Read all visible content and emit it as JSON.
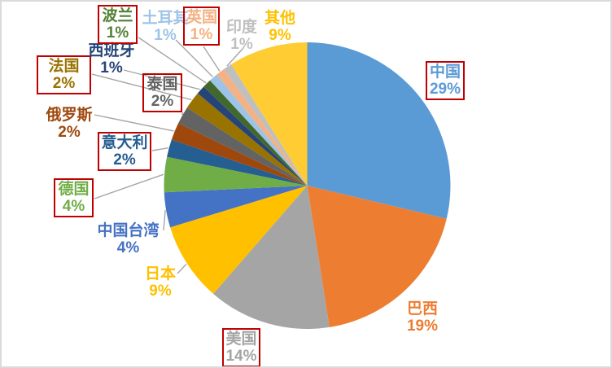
{
  "chart_data": {
    "type": "pie",
    "title": "",
    "unit": "%",
    "legend_position": "none",
    "background": "#FFFFFF",
    "frame_border_color": "#DBDBDB",
    "leader_line_color": "#A6A6A6",
    "highlight_box_color": "#C00000",
    "slices": [
      {
        "label": "中国",
        "value": 29,
        "pct": "29%",
        "color": "#5B9BD5",
        "label_color": "#5B9BD5",
        "boxed": true,
        "callout_line": false
      },
      {
        "label": "巴西",
        "value": 19,
        "pct": "19%",
        "color": "#ED7D31",
        "label_color": "#ED7D31",
        "boxed": false,
        "callout_line": false
      },
      {
        "label": "美国",
        "value": 14,
        "pct": "14%",
        "color": "#A5A5A5",
        "label_color": "#A5A5A5",
        "boxed": true,
        "callout_line": false
      },
      {
        "label": "日本",
        "value": 9,
        "pct": "9%",
        "color": "#FFC000",
        "label_color": "#FFC000",
        "boxed": false,
        "callout_line": true
      },
      {
        "label": "中国台湾",
        "value": 4,
        "pct": "4%",
        "color": "#4472C4",
        "label_color": "#4472C4",
        "boxed": false,
        "callout_line": true
      },
      {
        "label": "德国",
        "value": 4,
        "pct": "4%",
        "color": "#70AD47",
        "label_color": "#70AD47",
        "boxed": true,
        "callout_line": true
      },
      {
        "label": "意大利",
        "value": 2,
        "pct": "2%",
        "color": "#255E91",
        "label_color": "#255E91",
        "boxed": true,
        "callout_line": true
      },
      {
        "label": "俄罗斯",
        "value": 2,
        "pct": "2%",
        "color": "#9E480E",
        "label_color": "#9E480E",
        "boxed": false,
        "callout_line": true
      },
      {
        "label": "泰国",
        "value": 2,
        "pct": "2%",
        "color": "#636363",
        "label_color": "#636363",
        "boxed": true,
        "callout_line": true
      },
      {
        "label": "法国",
        "value": 2,
        "pct": "2%",
        "color": "#997300",
        "label_color": "#997300",
        "boxed": true,
        "callout_line": true
      },
      {
        "label": "西班牙",
        "value": 1,
        "pct": "1%",
        "color": "#264478",
        "label_color": "#264478",
        "boxed": false,
        "callout_line": true
      },
      {
        "label": "波兰",
        "value": 1,
        "pct": "1%",
        "color": "#43682B",
        "label_color": "#538135",
        "boxed": true,
        "callout_line": true
      },
      {
        "label": "土耳其",
        "value": 1,
        "pct": "1%",
        "color": "#9DC3E6",
        "label_color": "#9DC3E6",
        "boxed": false,
        "callout_line": true
      },
      {
        "label": "英国",
        "value": 1,
        "pct": "1%",
        "color": "#F4B183",
        "label_color": "#F4B183",
        "boxed": true,
        "callout_line": true
      },
      {
        "label": "印度",
        "value": 1,
        "pct": "1%",
        "color": "#BFBFBF",
        "label_color": "#BFBFBF",
        "boxed": false,
        "callout_line": true
      },
      {
        "label": "其他",
        "value": 9,
        "pct": "9%",
        "color": "#FFCC33",
        "label_color": "#FFC000",
        "boxed": false,
        "callout_line": false
      }
    ]
  }
}
